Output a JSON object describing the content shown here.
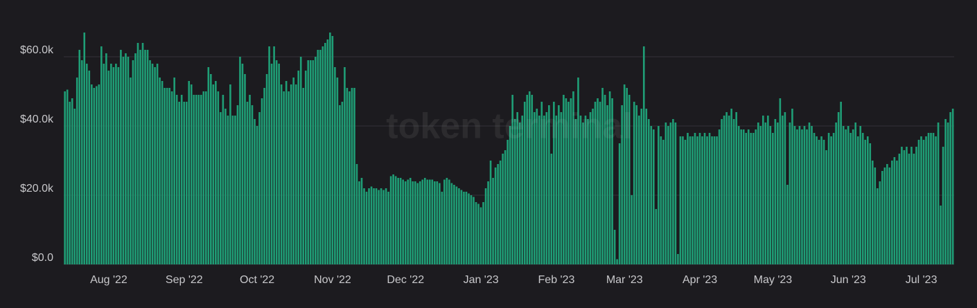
{
  "chart_data": {
    "type": "bar",
    "watermark": "token terminal",
    "color": "#1f9e76",
    "grid": true,
    "ylim": [
      0,
      68000
    ],
    "yticks": [
      {
        "value": 0,
        "label": "$0.0"
      },
      {
        "value": 20000,
        "label": "$20.0k"
      },
      {
        "value": 40000,
        "label": "$40.0k"
      },
      {
        "value": 60000,
        "label": "$60.0k"
      }
    ],
    "categories": [
      null,
      null,
      null,
      null,
      null,
      null,
      null,
      null,
      null,
      null,
      null,
      null,
      null,
      null,
      null,
      null,
      null,
      null,
      "Aug '22",
      null,
      null,
      null,
      null,
      null,
      null,
      null,
      null,
      null,
      null,
      null,
      null,
      null,
      null,
      null,
      null,
      null,
      null,
      null,
      null,
      null,
      null,
      null,
      null,
      null,
      null,
      null,
      null,
      null,
      null,
      "Sep '22",
      null,
      null,
      null,
      null,
      null,
      null,
      null,
      null,
      null,
      null,
      null,
      null,
      null,
      null,
      null,
      null,
      null,
      null,
      null,
      null,
      null,
      null,
      null,
      null,
      null,
      null,
      null,
      null,
      null,
      "Oct '22",
      null,
      null,
      null,
      null,
      null,
      null,
      null,
      null,
      null,
      null,
      null,
      null,
      null,
      null,
      null,
      null,
      null,
      null,
      null,
      null,
      null,
      null,
      null,
      null,
      null,
      null,
      null,
      null,
      null,
      null,
      "Nov '22",
      null,
      null,
      null,
      null,
      null,
      null,
      null,
      null,
      null,
      null,
      null,
      null,
      null,
      null,
      null,
      null,
      null,
      null,
      null,
      null,
      null,
      null,
      null,
      null,
      null,
      null,
      null,
      null,
      null,
      "Dec '22",
      null,
      null,
      null,
      null,
      null,
      null,
      null,
      null,
      null,
      null,
      null,
      null,
      null,
      null,
      null,
      null,
      null,
      null,
      null,
      null,
      null,
      null,
      null,
      null,
      null,
      null,
      null,
      null,
      null,
      null,
      "Jan '23",
      null,
      null,
      null,
      null,
      null,
      null,
      null,
      null,
      null,
      null,
      null,
      null,
      null,
      null,
      null,
      null,
      null,
      null,
      null,
      null,
      null,
      null,
      null,
      null,
      null,
      null,
      null,
      null,
      null,
      null,
      "Feb '23",
      null,
      null,
      null,
      null,
      null,
      null,
      null,
      null,
      null,
      null,
      null,
      null,
      null,
      null,
      null,
      null,
      null,
      null,
      null,
      null,
      null,
      null,
      null,
      null,
      null,
      null,
      null,
      "Mar '23",
      null,
      null,
      null,
      null,
      null,
      null,
      null,
      null,
      null,
      null,
      null,
      null,
      null,
      null,
      null,
      null,
      null,
      null,
      null,
      null,
      null,
      null,
      null,
      null,
      null,
      null,
      null,
      null,
      null,
      null,
      "Apr '23",
      null,
      null,
      null,
      null,
      null,
      null,
      null,
      null,
      null,
      null,
      null,
      null,
      null,
      null,
      null,
      null,
      null,
      null,
      null,
      null,
      null,
      null,
      null,
      null,
      null,
      null,
      null,
      null,
      null,
      "May '23",
      null,
      null,
      null,
      null,
      null,
      null,
      null,
      null,
      null,
      null,
      null,
      null,
      null,
      null,
      null,
      null,
      null,
      null,
      null,
      null,
      null,
      null,
      null,
      null,
      null,
      null,
      null,
      null,
      null,
      null,
      "Jun '23",
      null,
      null,
      null,
      null,
      null,
      null,
      null,
      null,
      null,
      null,
      null,
      null,
      null,
      null,
      null,
      null,
      null,
      null,
      null,
      null,
      null,
      null,
      null,
      null,
      null,
      null,
      null,
      null,
      null,
      "Jul '23",
      null,
      null,
      null,
      null,
      null,
      null,
      null,
      null,
      null,
      null,
      null,
      null,
      null
    ],
    "values": [
      50000,
      50500,
      47000,
      48000,
      45000,
      54000,
      62000,
      59000,
      67000,
      58000,
      56000,
      52000,
      51000,
      51500,
      52000,
      63000,
      58000,
      61000,
      56000,
      58000,
      57000,
      58000,
      57000,
      62000,
      60000,
      61000,
      60000,
      54000,
      59000,
      61000,
      64000,
      62000,
      64000,
      62000,
      62000,
      59000,
      58000,
      57000,
      58000,
      54000,
      53000,
      51000,
      51000,
      51000,
      50000,
      54000,
      49000,
      47000,
      49000,
      47000,
      47000,
      53000,
      52000,
      49000,
      49000,
      49000,
      49000,
      50000,
      50000,
      57000,
      55000,
      52000,
      53000,
      50000,
      44000,
      49000,
      45000,
      43000,
      52000,
      43000,
      43000,
      46000,
      60000,
      58000,
      55000,
      47000,
      49000,
      46000,
      42000,
      40000,
      44000,
      48000,
      51000,
      55000,
      63000,
      58000,
      63000,
      59000,
      58000,
      52000,
      50000,
      53000,
      50000,
      52000,
      54000,
      52000,
      56000,
      60000,
      51000,
      56000,
      59000,
      59000,
      59000,
      60000,
      62000,
      62000,
      63000,
      64000,
      65000,
      67000,
      66000,
      57000,
      54000,
      46000,
      47000,
      57000,
      51000,
      50000,
      51000,
      51000,
      29000,
      24000,
      25000,
      22000,
      21000,
      22000,
      22500,
      22000,
      22000,
      21500,
      22000,
      21500,
      22000,
      21000,
      25500,
      26000,
      25500,
      25000,
      25000,
      24500,
      24000,
      24500,
      25000,
      24000,
      24000,
      23500,
      24000,
      24500,
      25000,
      24500,
      24500,
      24500,
      24000,
      24000,
      23500,
      21000,
      24500,
      25000,
      24500,
      23500,
      23000,
      22500,
      22000,
      21500,
      21000,
      21000,
      20500,
      20000,
      19500,
      18000,
      17500,
      16500,
      18000,
      22000,
      24000,
      30000,
      25000,
      28000,
      29000,
      30000,
      32000,
      33000,
      36000,
      40000,
      49000,
      42000,
      44000,
      41000,
      43000,
      47000,
      49000,
      50000,
      49000,
      44000,
      45000,
      43000,
      47000,
      43000,
      44000,
      46000,
      32000,
      47000,
      43000,
      46000,
      44000,
      49000,
      48000,
      47000,
      48000,
      50000,
      42000,
      54000,
      43000,
      41000,
      43000,
      42000,
      44000,
      45000,
      47000,
      48000,
      47000,
      51000,
      49000,
      46000,
      50000,
      48000,
      10000,
      1500,
      35000,
      46000,
      52000,
      51000,
      49000,
      20000,
      47000,
      46000,
      43000,
      45000,
      63000,
      45000,
      42000,
      40000,
      39000,
      16000,
      40000,
      37000,
      36000,
      41000,
      40000,
      41000,
      42000,
      41000,
      3000,
      37000,
      37000,
      36000,
      38000,
      37000,
      37000,
      38000,
      37000,
      38000,
      37000,
      38000,
      37000,
      38000,
      37000,
      37000,
      37000,
      39000,
      42000,
      43000,
      44000,
      43000,
      45000,
      42000,
      44000,
      40000,
      39000,
      39000,
      38000,
      39000,
      38000,
      38000,
      39000,
      41000,
      40000,
      43000,
      41000,
      43000,
      40000,
      38000,
      42000,
      41000,
      48000,
      43000,
      44000,
      23000,
      41000,
      45000,
      40000,
      39000,
      40000,
      39000,
      40000,
      39000,
      41000,
      40000,
      38000,
      37000,
      36000,
      37000,
      36000,
      33000,
      38000,
      37000,
      38000,
      41000,
      44000,
      47000,
      40000,
      39000,
      40000,
      38000,
      39000,
      41000,
      37000,
      40000,
      38000,
      36000,
      37000,
      35000,
      30000,
      28000,
      22000,
      24000,
      27000,
      28000,
      29000,
      28000,
      30000,
      31000,
      30000,
      32000,
      34000,
      33000,
      34000,
      32000,
      34000,
      32000,
      34000,
      36000,
      37000,
      36000,
      37000,
      38000,
      38000,
      38000,
      37000,
      41000,
      17000,
      34000,
      42000,
      41000,
      44000,
      45000
    ]
  }
}
